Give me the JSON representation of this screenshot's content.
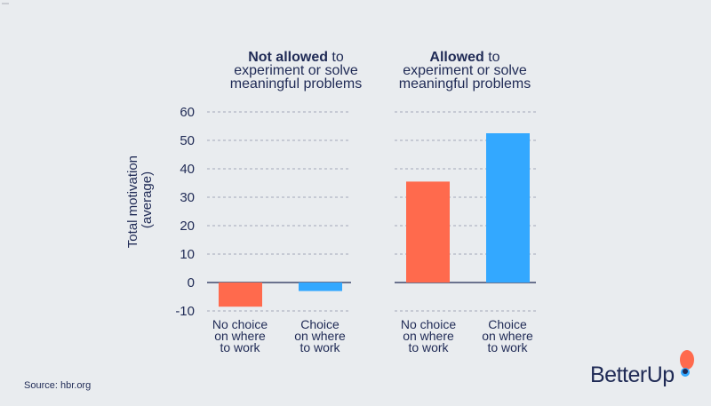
{
  "chart_data": [
    {
      "type": "bar",
      "title_bold": "Not allowed",
      "title_rest_line1": " to",
      "title_line2": "experiment or solve",
      "title_line3": "meaningful problems",
      "ylabel": "Total motivation (average)",
      "ylabel_line1": "Total motivation",
      "ylabel_line2": "(average)",
      "ylim": [
        -10,
        60
      ],
      "yticks": [
        "60",
        "50",
        "40",
        "30",
        "20",
        "10",
        "0",
        "-10"
      ],
      "grid": true,
      "categories": [
        {
          "line1": "No choice",
          "line2": "on where",
          "line3": "to work"
        },
        {
          "line1": "Choice",
          "line2": "on where",
          "line3": "to work"
        }
      ],
      "values": [
        -8.5,
        -3
      ],
      "colors": [
        "#ff6a4d",
        "#33a8ff"
      ]
    },
    {
      "type": "bar",
      "title_bold": "Allowed",
      "title_rest_line1": " to",
      "title_line2": "experiment or solve",
      "title_line3": "meaningful problems",
      "ylim": [
        -10,
        60
      ],
      "grid": true,
      "categories": [
        {
          "line1": "No choice",
          "line2": "on where",
          "line3": "to work"
        },
        {
          "line1": "Choice",
          "line2": "on where",
          "line3": "to work"
        }
      ],
      "values": [
        35.5,
        52.5
      ],
      "colors": [
        "#ff6a4d",
        "#33a8ff"
      ]
    }
  ],
  "source": "Source: hbr.org",
  "logo_text": "BetterUp"
}
